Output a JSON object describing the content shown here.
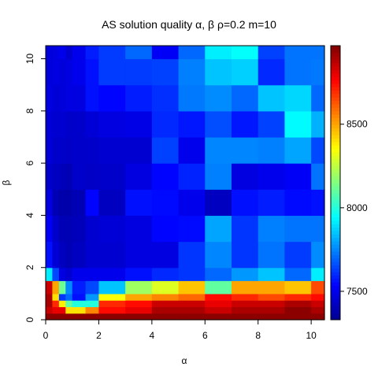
{
  "chart_data": {
    "type": "heatmap",
    "title": "AS solution quality α, β   ρ=0.2 m=10",
    "xlabel": "α",
    "ylabel": "β",
    "xlim": [
      0,
      10.5
    ],
    "ylim": [
      0,
      10.5
    ],
    "x_ticks": [
      "0",
      "2",
      "4",
      "6",
      "8",
      "10"
    ],
    "y_ticks": [
      "0",
      "2",
      "4",
      "6",
      "8",
      "10"
    ],
    "x_edges": [
      0,
      0.25,
      0.5,
      0.75,
      1,
      1.5,
      2,
      3,
      4,
      5,
      6,
      7,
      8,
      9,
      10,
      10.5
    ],
    "y_edges": [
      0,
      0.25,
      0.5,
      0.75,
      1,
      1.5,
      2,
      3,
      4,
      5,
      6,
      7,
      8,
      9,
      10,
      10.5
    ],
    "values": [
      [
        8950,
        8950,
        8950,
        8950,
        8950,
        8950,
        8950,
        8950,
        8950,
        8950,
        8950,
        8950,
        8950,
        8950,
        8950
      ],
      [
        8850,
        8800,
        8800,
        8400,
        8400,
        8550,
        8750,
        8800,
        8900,
        8900,
        8850,
        8900,
        8900,
        8950,
        8900
      ],
      [
        8900,
        8700,
        8380,
        8100,
        8000,
        8000,
        8700,
        8750,
        8850,
        8850,
        8800,
        8850,
        8850,
        8900,
        8850
      ],
      [
        8900,
        8400,
        7620,
        7700,
        7560,
        7780,
        8350,
        8500,
        8550,
        8600,
        8750,
        8700,
        8650,
        8700,
        8750
      ],
      [
        8850,
        8500,
        8120,
        7760,
        7580,
        7650,
        7850,
        8200,
        8300,
        8450,
        8100,
        8500,
        8500,
        8450,
        8650
      ],
      [
        7920,
        7650,
        7480,
        7450,
        7500,
        7500,
        7500,
        7560,
        7600,
        7620,
        7700,
        7780,
        7850,
        7700,
        7920
      ],
      [
        7560,
        7460,
        7420,
        7400,
        7420,
        7450,
        7450,
        7480,
        7480,
        7620,
        7750,
        7620,
        7720,
        7630,
        7760
      ],
      [
        7520,
        7440,
        7400,
        7400,
        7410,
        7450,
        7460,
        7480,
        7540,
        7550,
        7800,
        7620,
        7740,
        7720,
        7720
      ],
      [
        7480,
        7400,
        7380,
        7380,
        7400,
        7540,
        7420,
        7560,
        7550,
        7500,
        7420,
        7560,
        7580,
        7550,
        7560
      ],
      [
        7440,
        7420,
        7410,
        7400,
        7440,
        7430,
        7440,
        7480,
        7540,
        7590,
        7740,
        7480,
        7500,
        7520,
        7720
      ],
      [
        7460,
        7440,
        7440,
        7430,
        7440,
        7440,
        7450,
        7450,
        7640,
        7500,
        7750,
        7750,
        7740,
        7800,
        7650
      ],
      [
        7460,
        7450,
        7450,
        7440,
        7440,
        7460,
        7480,
        7490,
        7600,
        7570,
        7660,
        7570,
        7640,
        7940,
        7820
      ],
      [
        7480,
        7460,
        7470,
        7480,
        7480,
        7560,
        7540,
        7580,
        7610,
        7730,
        7760,
        7700,
        7850,
        7880,
        7700
      ],
      [
        7470,
        7480,
        7470,
        7480,
        7500,
        7560,
        7630,
        7630,
        7640,
        7740,
        7850,
        7870,
        7600,
        7720,
        7730
      ],
      [
        7470,
        7480,
        7500,
        7450,
        7500,
        7580,
        7630,
        7700,
        7520,
        7700,
        7920,
        7950,
        7640,
        7720,
        7720
      ]
    ],
    "legend": {
      "min": 7330,
      "max": 8970,
      "ticks": [
        "7500",
        "8000",
        "8500"
      ],
      "tick_values": [
        7500,
        8000,
        8500
      ]
    }
  }
}
